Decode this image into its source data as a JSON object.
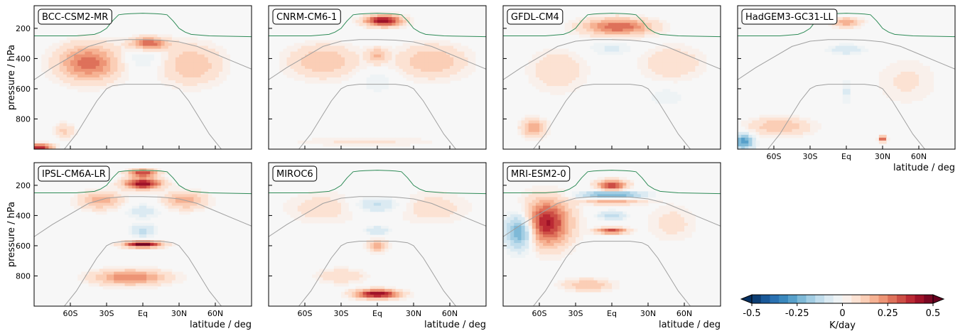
{
  "chart_data": {
    "type": "heatmap",
    "xlabel": "latitude / deg",
    "ylabel": "pressure / hPa",
    "xlim": [
      -90,
      90
    ],
    "ylim": [
      1000,
      50
    ],
    "y_scale": "linear",
    "x_ticks": [
      -60,
      -30,
      0,
      30,
      60
    ],
    "x_tick_labels": [
      "60S",
      "30S",
      "Eq",
      "30N",
      "60N"
    ],
    "y_ticks": [
      200,
      400,
      600,
      800
    ],
    "y_tick_labels": [
      "200",
      "400",
      "600",
      "800"
    ],
    "panels": [
      {
        "name": "BCC-CSM2-MR",
        "blobs": [
          {
            "lat": -45,
            "p": 430,
            "rlat": 25,
            "rp": 120,
            "v": 0.28
          },
          {
            "lat": 40,
            "p": 440,
            "rlat": 25,
            "rp": 130,
            "v": 0.15
          },
          {
            "lat": 5,
            "p": 300,
            "rlat": 15,
            "rp": 40,
            "v": 0.3
          },
          {
            "lat": 0,
            "p": 400,
            "rlat": 18,
            "rp": 80,
            "v": -0.07
          },
          {
            "lat": -65,
            "p": 880,
            "rlat": 8,
            "rp": 50,
            "v": 0.12
          },
          {
            "lat": -85,
            "p": 990,
            "rlat": 10,
            "rp": 25,
            "v": 0.4
          }
        ]
      },
      {
        "name": "CNRM-CM6-1",
        "blobs": [
          {
            "lat": 5,
            "p": 150,
            "rlat": 15,
            "rp": 35,
            "v": 0.45
          },
          {
            "lat": -45,
            "p": 420,
            "rlat": 28,
            "rp": 110,
            "v": 0.15
          },
          {
            "lat": 45,
            "p": 420,
            "rlat": 28,
            "rp": 110,
            "v": 0.15
          },
          {
            "lat": 0,
            "p": 380,
            "rlat": 8,
            "rp": 50,
            "v": 0.15
          },
          {
            "lat": 0,
            "p": 550,
            "rlat": 15,
            "rp": 80,
            "v": -0.05
          },
          {
            "lat": -10,
            "p": 950,
            "rlat": 60,
            "rp": 30,
            "v": 0.06
          }
        ]
      },
      {
        "name": "GFDL-CM4",
        "blobs": [
          {
            "lat": 5,
            "p": 190,
            "rlat": 28,
            "rp": 55,
            "v": 0.3
          },
          {
            "lat": -45,
            "p": 480,
            "rlat": 22,
            "rp": 130,
            "v": 0.1
          },
          {
            "lat": 50,
            "p": 430,
            "rlat": 25,
            "rp": 110,
            "v": 0.1
          },
          {
            "lat": 0,
            "p": 330,
            "rlat": 20,
            "rp": 50,
            "v": -0.06
          },
          {
            "lat": -65,
            "p": 860,
            "rlat": 10,
            "rp": 60,
            "v": 0.2
          },
          {
            "lat": 45,
            "p": 650,
            "rlat": 15,
            "rp": 60,
            "v": -0.05
          }
        ]
      },
      {
        "name": "HadGEM3-GC31-LL",
        "blobs": [
          {
            "lat": 0,
            "p": 160,
            "rlat": 12,
            "rp": 30,
            "v": 0.2
          },
          {
            "lat": 0,
            "p": 340,
            "rlat": 15,
            "rp": 30,
            "v": -0.1
          },
          {
            "lat": -55,
            "p": 850,
            "rlat": 25,
            "rp": 60,
            "v": 0.15
          },
          {
            "lat": 50,
            "p": 550,
            "rlat": 25,
            "rp": 150,
            "v": 0.06
          },
          {
            "lat": 0,
            "p": 620,
            "rlat": 4,
            "rp": 100,
            "v": -0.06
          },
          {
            "lat": -85,
            "p": 950,
            "rlat": 8,
            "rp": 50,
            "v": -0.3
          },
          {
            "lat": 30,
            "p": 930,
            "rlat": 3,
            "rp": 20,
            "v": 0.35
          }
        ]
      },
      {
        "name": "IPSL-CM6A-LR",
        "blobs": [
          {
            "lat": 0,
            "p": 190,
            "rlat": 15,
            "rp": 35,
            "v": 0.45
          },
          {
            "lat": 0,
            "p": 120,
            "rlat": 12,
            "rp": 25,
            "v": 0.35
          },
          {
            "lat": 0,
            "p": 590,
            "rlat": 15,
            "rp": 20,
            "v": 0.5
          },
          {
            "lat": 0,
            "p": 500,
            "rlat": 10,
            "rp": 40,
            "v": -0.12
          },
          {
            "lat": -10,
            "p": 810,
            "rlat": 30,
            "rp": 50,
            "v": 0.25
          },
          {
            "lat": -35,
            "p": 300,
            "rlat": 18,
            "rp": 60,
            "v": 0.18
          },
          {
            "lat": 35,
            "p": 300,
            "rlat": 18,
            "rp": 60,
            "v": 0.18
          },
          {
            "lat": 0,
            "p": 370,
            "rlat": 15,
            "rp": 50,
            "v": -0.08
          }
        ]
      },
      {
        "name": "MIROC6",
        "blobs": [
          {
            "lat": 0,
            "p": 920,
            "rlat": 18,
            "rp": 30,
            "v": 0.45
          },
          {
            "lat": 0,
            "p": 600,
            "rlat": 8,
            "rp": 40,
            "v": 0.2
          },
          {
            "lat": 0,
            "p": 330,
            "rlat": 20,
            "rp": 50,
            "v": -0.12
          },
          {
            "lat": 0,
            "p": 500,
            "rlat": 10,
            "rp": 30,
            "v": -0.1
          },
          {
            "lat": -45,
            "p": 350,
            "rlat": 30,
            "rp": 100,
            "v": 0.08
          },
          {
            "lat": 45,
            "p": 350,
            "rlat": 30,
            "rp": 100,
            "v": 0.08
          },
          {
            "lat": -30,
            "p": 800,
            "rlat": 20,
            "rp": 50,
            "v": 0.1
          }
        ]
      },
      {
        "name": "MRI-ESM2-0",
        "blobs": [
          {
            "lat": -55,
            "p": 450,
            "rlat": 20,
            "rp": 150,
            "v": 0.42
          },
          {
            "lat": -75,
            "p": 500,
            "rlat": 12,
            "rp": 120,
            "v": -0.35
          },
          {
            "lat": 0,
            "p": 200,
            "rlat": 12,
            "rp": 35,
            "v": 0.35
          },
          {
            "lat": 0,
            "p": 260,
            "rlat": 25,
            "rp": 20,
            "v": -0.3
          },
          {
            "lat": 0,
            "p": 310,
            "rlat": 25,
            "rp": 15,
            "v": 0.2
          },
          {
            "lat": 0,
            "p": 500,
            "rlat": 12,
            "rp": 20,
            "v": 0.35
          },
          {
            "lat": 0,
            "p": 400,
            "rlat": 12,
            "rp": 30,
            "v": -0.12
          },
          {
            "lat": -20,
            "p": 860,
            "rlat": 20,
            "rp": 40,
            "v": 0.15
          },
          {
            "lat": 50,
            "p": 450,
            "rlat": 20,
            "rp": 120,
            "v": 0.07
          }
        ]
      }
    ],
    "contour_lines": [
      {
        "color": "#2e8b57",
        "lat": [
          -90,
          -55,
          -48,
          -40,
          -35,
          -30,
          -28,
          -25,
          -20,
          -15,
          -10,
          0,
          10,
          15,
          20,
          25,
          28,
          30,
          35,
          40,
          48,
          55,
          90
        ],
        "p": [
          250,
          250,
          245,
          240,
          225,
          200,
          180,
          150,
          110,
          105,
          103,
          100,
          103,
          105,
          110,
          150,
          180,
          200,
          225,
          240,
          245,
          250,
          255
        ]
      },
      {
        "color": "#a0a0a0",
        "lat": [
          -90,
          -75,
          -60,
          -45,
          -30,
          -15,
          0,
          15,
          30,
          45,
          60,
          75,
          90
        ],
        "p": [
          540,
          460,
          390,
          320,
          285,
          275,
          275,
          278,
          290,
          320,
          370,
          420,
          470
        ]
      },
      {
        "color": "#a0a0a0",
        "lat": [
          -65,
          -55,
          -45,
          -38,
          -30,
          -25,
          -15,
          0,
          15,
          25,
          30,
          38,
          45,
          55,
          65
        ],
        "p": [
          1000,
          900,
          770,
          680,
          600,
          580,
          570,
          570,
          570,
          580,
          600,
          680,
          770,
          900,
          1000
        ]
      }
    ],
    "colorbar": {
      "label": "K/day",
      "vmin": -0.5,
      "vmax": 0.5,
      "ticks": [
        -0.5,
        -0.25,
        0,
        0.25,
        0.5
      ],
      "tick_labels": [
        "-0.5",
        "-0.25",
        "0",
        "0.25",
        "0.5"
      ],
      "levels": 20,
      "colormap": "RdBu_r",
      "extend": "both"
    }
  }
}
